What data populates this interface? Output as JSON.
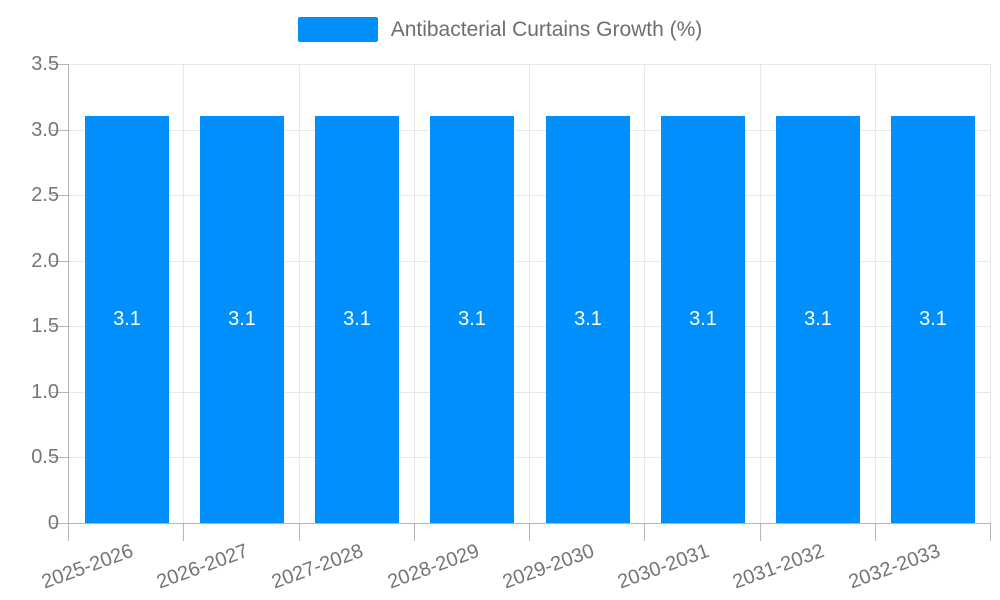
{
  "legend": {
    "label": "Antibacterial Curtains Growth (%)"
  },
  "chart_data": {
    "type": "bar",
    "title": "Antibacterial Curtains Growth (%)",
    "series": [
      {
        "name": "Antibacterial Curtains Growth (%)",
        "values": [
          3.1,
          3.1,
          3.1,
          3.1,
          3.1,
          3.1,
          3.1,
          3.1
        ]
      }
    ],
    "categories": [
      "2025-2026",
      "2026-2027",
      "2027-2028",
      "2028-2029",
      "2029-2030",
      "2030-2031",
      "2031-2032",
      "2032-2033"
    ],
    "bar_value_labels": [
      "3.1",
      "3.1",
      "3.1",
      "3.1",
      "3.1",
      "3.1",
      "3.1",
      "3.1"
    ],
    "xlabel": "",
    "ylabel": "",
    "ylim": [
      0,
      3.5
    ],
    "ytick_labels": [
      "0",
      "0.5",
      "1.0",
      "1.5",
      "2.0",
      "2.5",
      "3.0",
      "3.5"
    ],
    "ytick_values": [
      0,
      0.5,
      1.0,
      1.5,
      2.0,
      2.5,
      3.0,
      3.5
    ],
    "grid": true,
    "legend_position": "top",
    "colors": {
      "bar": "#008FFB",
      "grid": "#e7e7e7",
      "axis": "#b6b6b6",
      "tick_text": "#757575",
      "value_label": "#ffffff",
      "background": "#ffffff"
    }
  }
}
